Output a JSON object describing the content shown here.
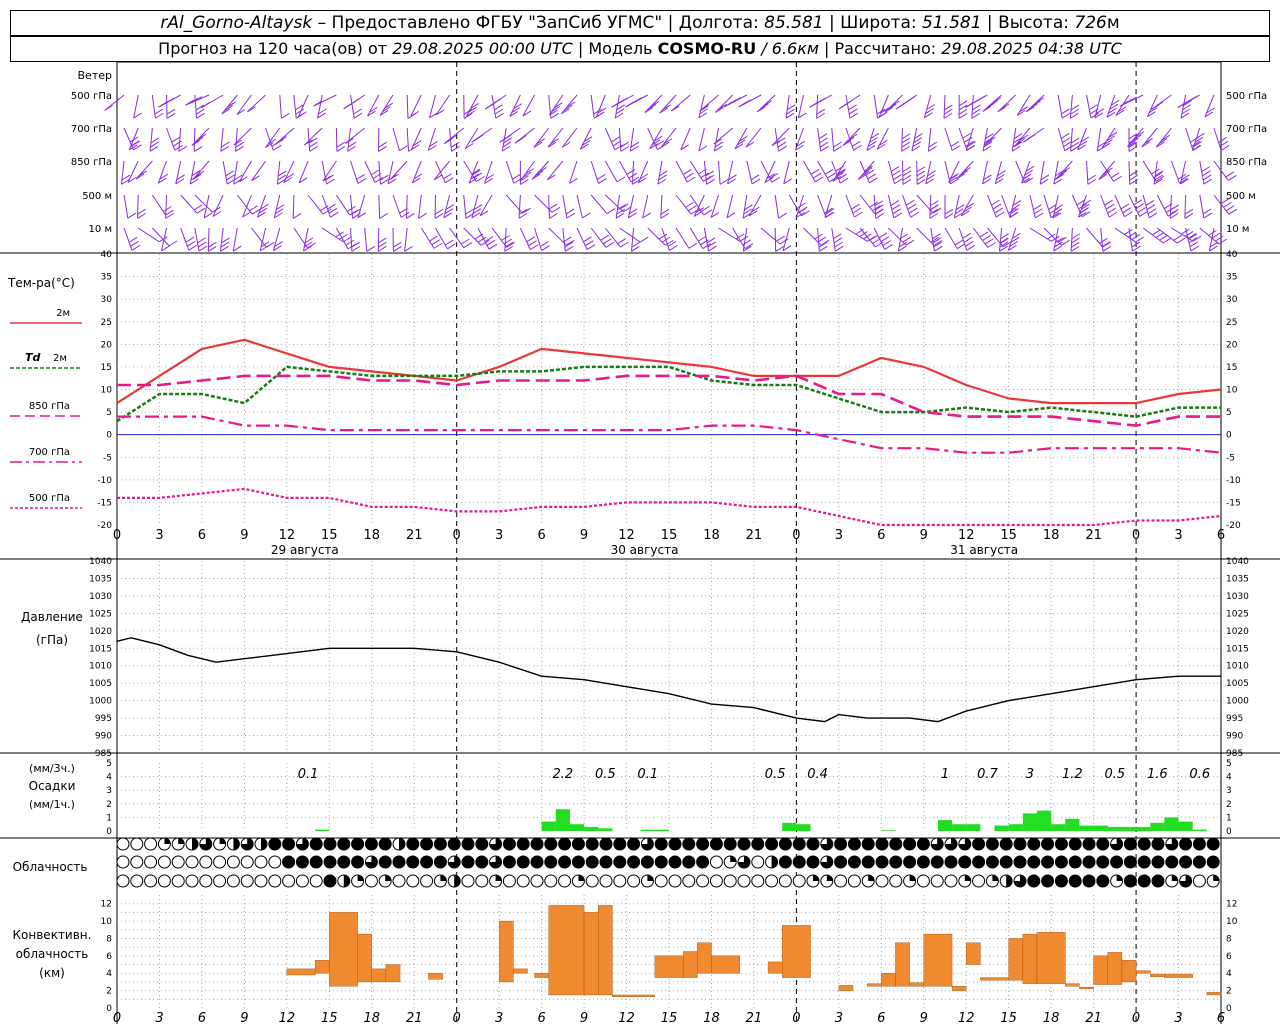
{
  "header": {
    "station": "rAl_Gorno-Altaysk",
    "provided_by": "– Предоставлено ФГБУ \"ЗапСиб УГМС\"",
    "lon_label": "Долгота:",
    "lon": "85.581",
    "lat_label": "Широта:",
    "lat": "51.581",
    "alt_label": "Высота:",
    "alt": "726",
    "alt_unit": "м",
    "forecast_label": "Прогноз на 120 часа(ов) от",
    "forecast_from": "29.08.2025 00:00 UTC",
    "model_label": "Модель",
    "model": "COSMO-RU",
    "model_res": "/ 6.6км",
    "calc_label": "Рассчитано:",
    "calc_time": "29.08.2025 04:38 UTC"
  },
  "wind_panel": {
    "title": "Ветер",
    "levels": [
      "500 гПа",
      "700 гПа",
      "850 гПа",
      "500 м",
      "10 м"
    ],
    "color": "#8a2be2"
  },
  "time_axis": {
    "hour_ticks": [
      "0",
      "3",
      "6",
      "9",
      "12",
      "15",
      "18",
      "21",
      "0",
      "3",
      "6",
      "9",
      "12",
      "15",
      "18",
      "21",
      "0",
      "3",
      "6",
      "9",
      "12",
      "15",
      "18",
      "21",
      "0",
      "3",
      "6"
    ],
    "days": [
      "29 августа",
      "30 августа",
      "31 августа"
    ]
  },
  "labels": {
    "temp_title": "Тем-ра(°C)",
    "legend_2m": "2м",
    "legend_td": "Td",
    "legend_td_sub": "2м",
    "legend_850": "850 гПа",
    "legend_700": "700 гПа",
    "legend_500": "500 гПа",
    "pressure_title": "Давление",
    "pressure_unit": "(гПа)",
    "precip_unit3": "(мм/3ч.)",
    "precip_title": "Осадки",
    "precip_unit1": "(мм/1ч.)",
    "cloud_title": "Облачность",
    "conv_title1": "Конвективн.",
    "conv_title2": "облачность",
    "conv_unit": "(км)"
  },
  "colors": {
    "t2m": "#e8383c",
    "td2m": "#1a7a1a",
    "t850": "#e8198a",
    "t700": "#e8198a",
    "t500": "#e8198a",
    "zero_line": "#2222cc",
    "precip": "#22dd22",
    "conv": "#f08a30"
  },
  "chart_data": [
    {
      "type": "line",
      "name": "temperature",
      "x_hours": [
        0,
        3,
        6,
        9,
        12,
        15,
        18,
        21,
        24,
        27,
        30,
        33,
        36,
        39,
        42,
        45,
        48,
        51,
        54,
        57,
        60,
        63,
        66,
        69,
        72,
        75,
        78
      ],
      "series": [
        {
          "name": "2м",
          "values": [
            7,
            13,
            19,
            21,
            18,
            15,
            14,
            13,
            12,
            15,
            19,
            18,
            17,
            16,
            15,
            13,
            13,
            13,
            17,
            15,
            11,
            8,
            7,
            7,
            7,
            9,
            10
          ]
        },
        {
          "name": "Td 2м",
          "values": [
            3,
            9,
            9,
            7,
            15,
            14,
            13,
            13,
            13,
            14,
            14,
            15,
            15,
            15,
            12,
            11,
            11,
            8,
            5,
            5,
            6,
            5,
            6,
            5,
            4,
            6,
            6
          ]
        },
        {
          "name": "850 гПа",
          "values": [
            11,
            11,
            12,
            13,
            13,
            13,
            12,
            12,
            11,
            12,
            12,
            12,
            13,
            13,
            13,
            12,
            13,
            9,
            9,
            5,
            4,
            4,
            4,
            3,
            2,
            4,
            4
          ]
        },
        {
          "name": "700 гПа",
          "values": [
            4,
            4,
            4,
            2,
            2,
            1,
            1,
            1,
            1,
            1,
            1,
            1,
            1,
            1,
            2,
            2,
            1,
            -1,
            -3,
            -3,
            -4,
            -4,
            -3,
            -3,
            -3,
            -3,
            -4
          ]
        },
        {
          "name": "500 гПа",
          "values": [
            -14,
            -14,
            -13,
            -12,
            -14,
            -14,
            -16,
            -16,
            -17,
            -17,
            -16,
            -16,
            -15,
            -15,
            -15,
            -16,
            -16,
            -18,
            -21,
            -22,
            -22,
            -22,
            -21,
            -20,
            -19,
            -19,
            -18
          ]
        }
      ],
      "ylim": [
        -20,
        40
      ],
      "yticks": [
        -20,
        -15,
        -10,
        -5,
        0,
        5,
        10,
        15,
        20,
        25,
        30,
        35,
        40
      ]
    },
    {
      "type": "line",
      "name": "pressure",
      "x_hours": [
        0,
        1,
        3,
        5,
        7,
        9,
        11,
        13,
        15,
        17,
        19,
        21,
        24,
        27,
        30,
        33,
        36,
        39,
        42,
        45,
        48,
        50,
        51,
        53,
        56,
        58,
        60,
        63,
        66,
        69,
        72,
        75,
        78
      ],
      "values": [
        1017,
        1018,
        1016,
        1013,
        1011,
        1012,
        1013,
        1014,
        1015,
        1015,
        1015,
        1015,
        1014,
        1011,
        1007,
        1006,
        1004,
        1002,
        999,
        998,
        995,
        994,
        996,
        995,
        995,
        994,
        997,
        1000,
        1002,
        1004,
        1006,
        1007,
        1007
      ],
      "ylim": [
        985,
        1040
      ],
      "yticks": [
        985,
        990,
        995,
        1000,
        1005,
        1010,
        1015,
        1020,
        1025,
        1030,
        1035,
        1040
      ]
    },
    {
      "type": "bar",
      "name": "precipitation",
      "hourly_bars": [
        {
          "h": 14.5,
          "v": 0.1
        },
        {
          "h": 30.5,
          "v": 0.7
        },
        {
          "h": 31.5,
          "v": 1.6
        },
        {
          "h": 32.5,
          "v": 0.5
        },
        {
          "h": 33.5,
          "v": 0.3
        },
        {
          "h": 34.5,
          "v": 0.2
        },
        {
          "h": 37.5,
          "v": 0.1
        },
        {
          "h": 38.5,
          "v": 0.1
        },
        {
          "h": 47.5,
          "v": 0.6
        },
        {
          "h": 48.5,
          "v": 0.5
        },
        {
          "h": 54.5,
          "v": 0.05
        },
        {
          "h": 58.5,
          "v": 0.8
        },
        {
          "h": 59.5,
          "v": 0.5
        },
        {
          "h": 60.5,
          "v": 0.5
        },
        {
          "h": 62.5,
          "v": 0.4
        },
        {
          "h": 63.5,
          "v": 0.5
        },
        {
          "h": 64.5,
          "v": 1.3
        },
        {
          "h": 65.5,
          "v": 1.5
        },
        {
          "h": 66.5,
          "v": 0.5
        },
        {
          "h": 67.5,
          "v": 0.9
        },
        {
          "h": 68.5,
          "v": 0.4
        },
        {
          "h": 69.5,
          "v": 0.4
        },
        {
          "h": 70.5,
          "v": 0.3
        },
        {
          "h": 71.5,
          "v": 0.3
        },
        {
          "h": 72.5,
          "v": 0.3
        },
        {
          "h": 73.5,
          "v": 0.6
        },
        {
          "h": 74.5,
          "v": 1.0
        },
        {
          "h": 75.5,
          "v": 0.7
        },
        {
          "h": 76.5,
          "v": 0.1
        }
      ],
      "three_hour_totals": [
        {
          "h": 13.5,
          "label": "0.1"
        },
        {
          "h": 31.5,
          "label": "2.2"
        },
        {
          "h": 34.5,
          "label": "0.5"
        },
        {
          "h": 37.5,
          "label": "0.1"
        },
        {
          "h": 46.5,
          "label": "0.5"
        },
        {
          "h": 49.5,
          "label": "0.4"
        },
        {
          "h": 58.5,
          "label": "1"
        },
        {
          "h": 61.5,
          "label": "0.7"
        },
        {
          "h": 64.5,
          "label": "3"
        },
        {
          "h": 67.5,
          "label": "1.2"
        },
        {
          "h": 70.5,
          "label": "0.5"
        },
        {
          "h": 73.5,
          "label": "1.6"
        },
        {
          "h": 76.5,
          "label": "0.6"
        }
      ],
      "ylim": [
        0,
        5
      ],
      "yticks": [
        0,
        1,
        2,
        3,
        4,
        5
      ]
    },
    {
      "type": "table",
      "name": "cloudiness",
      "note_levels": [
        "high",
        "middle",
        "low"
      ],
      "cover_eighths": [
        [
          0,
          0,
          0,
          2,
          2,
          4,
          6,
          2,
          4,
          6,
          4,
          8,
          8,
          6,
          8,
          8,
          8,
          8,
          8,
          8,
          4,
          8,
          8,
          8,
          8,
          8,
          8,
          6,
          8,
          8,
          8,
          8,
          8,
          8,
          8,
          8,
          8,
          8,
          6,
          8,
          8,
          8,
          8,
          8,
          8,
          8,
          8,
          8,
          8,
          8,
          8,
          6,
          8,
          8,
          8,
          8,
          8,
          8,
          8,
          6,
          6,
          6,
          8,
          8,
          8,
          8,
          8,
          8,
          8,
          8,
          8,
          8,
          6,
          8,
          8,
          8,
          6,
          8,
          8,
          8
        ],
        [
          0,
          0,
          0,
          0,
          0,
          0,
          0,
          0,
          0,
          0,
          0,
          0,
          8,
          8,
          8,
          8,
          8,
          8,
          6,
          8,
          8,
          8,
          8,
          8,
          6,
          8,
          8,
          6,
          8,
          8,
          8,
          8,
          8,
          8,
          8,
          8,
          8,
          8,
          8,
          8,
          8,
          8,
          8,
          0,
          2,
          6,
          0,
          4,
          8,
          8,
          8,
          6,
          8,
          8,
          8,
          8,
          8,
          8,
          8,
          8,
          8,
          8,
          8,
          8,
          8,
          8,
          8,
          8,
          8,
          8,
          8,
          8,
          8,
          8,
          8,
          8,
          8,
          8,
          8,
          8
        ],
        [
          0,
          0,
          0,
          0,
          0,
          0,
          0,
          0,
          0,
          0,
          0,
          0,
          0,
          0,
          0,
          8,
          4,
          2,
          0,
          2,
          0,
          0,
          0,
          2,
          4,
          0,
          0,
          2,
          0,
          0,
          0,
          0,
          0,
          2,
          0,
          0,
          0,
          0,
          2,
          0,
          0,
          0,
          0,
          0,
          0,
          0,
          0,
          0,
          0,
          0,
          2,
          2,
          0,
          0,
          2,
          0,
          0,
          2,
          0,
          0,
          0,
          2,
          0,
          2,
          4,
          6,
          8,
          8,
          8,
          8,
          8,
          8,
          2,
          8,
          8,
          8,
          2,
          6,
          0,
          2
        ]
      ]
    },
    {
      "type": "bar",
      "name": "convective_cloud",
      "layers_km": [
        {
          "h0": 12,
          "h1": 14,
          "bot": 3.8,
          "top": 4.5
        },
        {
          "h0": 14,
          "h1": 15,
          "bot": 4.0,
          "top": 5.5
        },
        {
          "h0": 15,
          "h1": 17,
          "bot": 2.5,
          "top": 11
        },
        {
          "h0": 17,
          "h1": 18,
          "bot": 3.0,
          "top": 8.5
        },
        {
          "h0": 18,
          "h1": 19,
          "bot": 3.0,
          "top": 4.5
        },
        {
          "h0": 19,
          "h1": 20,
          "bot": 3.0,
          "top": 5.0
        },
        {
          "h0": 22,
          "h1": 23,
          "bot": 3.3,
          "top": 4.0
        },
        {
          "h0": 27,
          "h1": 28,
          "bot": 3.0,
          "top": 10
        },
        {
          "h0": 28,
          "h1": 29,
          "bot": 4.0,
          "top": 4.5
        },
        {
          "h0": 29.5,
          "h1": 30.5,
          "bot": 3.5,
          "top": 4.0
        },
        {
          "h0": 30.5,
          "h1": 33,
          "bot": 1.5,
          "top": 11.8
        },
        {
          "h0": 33,
          "h1": 34,
          "bot": 1.5,
          "top": 11
        },
        {
          "h0": 34,
          "h1": 35,
          "bot": 1.5,
          "top": 11.8
        },
        {
          "h0": 35,
          "h1": 38,
          "bot": 1.3,
          "top": 1.5
        },
        {
          "h0": 38,
          "h1": 40,
          "bot": 3.5,
          "top": 6
        },
        {
          "h0": 40,
          "h1": 41,
          "bot": 3.5,
          "top": 6.5
        },
        {
          "h0": 41,
          "h1": 42,
          "bot": 4.0,
          "top": 7.5
        },
        {
          "h0": 42,
          "h1": 44,
          "bot": 4.0,
          "top": 6
        },
        {
          "h0": 46,
          "h1": 47,
          "bot": 4.0,
          "top": 5.3
        },
        {
          "h0": 47,
          "h1": 49,
          "bot": 3.5,
          "top": 9.5
        },
        {
          "h0": 51,
          "h1": 52,
          "bot": 2.0,
          "top": 2.6
        },
        {
          "h0": 53,
          "h1": 54,
          "bot": 2.5,
          "top": 2.8
        },
        {
          "h0": 54,
          "h1": 55,
          "bot": 2.5,
          "top": 4.0
        },
        {
          "h0": 55,
          "h1": 56,
          "bot": 2.5,
          "top": 7.5
        },
        {
          "h0": 56,
          "h1": 57,
          "bot": 2.5,
          "top": 2.9
        },
        {
          "h0": 57,
          "h1": 59,
          "bot": 2.5,
          "top": 8.5
        },
        {
          "h0": 59,
          "h1": 60,
          "bot": 2.0,
          "top": 2.5
        },
        {
          "h0": 60,
          "h1": 61,
          "bot": 5.0,
          "top": 7.5
        },
        {
          "h0": 61,
          "h1": 63,
          "bot": 3.2,
          "top": 3.5
        },
        {
          "h0": 63,
          "h1": 64,
          "bot": 3.2,
          "top": 8.0
        },
        {
          "h0": 64,
          "h1": 65,
          "bot": 2.8,
          "top": 8.5
        },
        {
          "h0": 65,
          "h1": 67,
          "bot": 2.8,
          "top": 8.7
        },
        {
          "h0": 67,
          "h1": 68,
          "bot": 2.5,
          "top": 2.8
        },
        {
          "h0": 68,
          "h1": 69,
          "bot": 2.2,
          "top": 2.4
        },
        {
          "h0": 69,
          "h1": 70,
          "bot": 2.7,
          "top": 6.0
        },
        {
          "h0": 70,
          "h1": 71,
          "bot": 2.7,
          "top": 6.4
        },
        {
          "h0": 71,
          "h1": 72,
          "bot": 3.0,
          "top": 5.5
        },
        {
          "h0": 72,
          "h1": 73,
          "bot": 4.0,
          "top": 4.3
        },
        {
          "h0": 73,
          "h1": 74,
          "bot": 3.6,
          "top": 3.9
        },
        {
          "h0": 74,
          "h1": 76,
          "bot": 3.5,
          "top": 3.9
        },
        {
          "h0": 77,
          "h1": 78,
          "bot": 1.5,
          "top": 1.8
        }
      ],
      "ylim": [
        0,
        13
      ],
      "yticks": [
        0,
        2,
        4,
        6,
        8,
        10,
        12
      ]
    }
  ]
}
